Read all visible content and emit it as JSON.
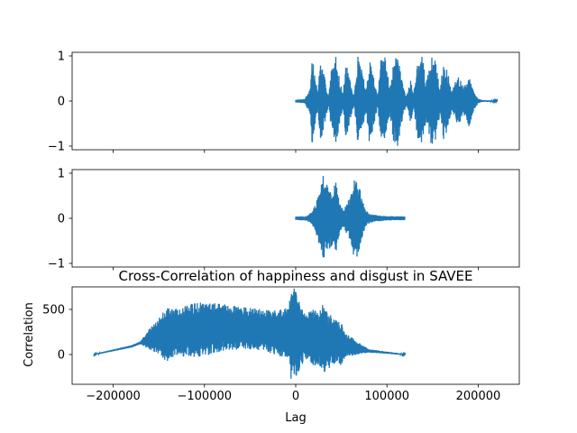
{
  "chart_data": [
    {
      "type": "line",
      "panel": "top",
      "title": "",
      "xlabel": "",
      "ylabel": "",
      "xlim": [
        -245000,
        245000
      ],
      "ylim": [
        -1.08,
        1.08
      ],
      "yticks": [
        -1,
        0,
        1
      ],
      "ytick_labels": [
        "−1",
        "0",
        "1"
      ],
      "xticks": [
        -200000,
        -100000,
        0,
        100000,
        200000
      ],
      "xtick_labels": [],
      "color": "#1f77b4",
      "series": [
        {
          "x_range": [
            0,
            221000
          ],
          "envelope": [
            [
              0,
              0.03
            ],
            [
              10000,
              0.05
            ],
            [
              16000,
              0.3
            ],
            [
              18000,
              1.0
            ],
            [
              21000,
              0.6
            ],
            [
              24000,
              0.2
            ],
            [
              27000,
              0.9
            ],
            [
              32000,
              0.5
            ],
            [
              36000,
              0.1
            ],
            [
              39000,
              0.7
            ],
            [
              44000,
              1.0
            ],
            [
              48000,
              0.5
            ],
            [
              52000,
              0.15
            ],
            [
              55000,
              0.9
            ],
            [
              60000,
              0.4
            ],
            [
              64000,
              0.1
            ],
            [
              68000,
              1.0
            ],
            [
              73000,
              0.7
            ],
            [
              77000,
              0.2
            ],
            [
              81000,
              1.0
            ],
            [
              86000,
              0.5
            ],
            [
              90000,
              0.12
            ],
            [
              93000,
              0.9
            ],
            [
              98000,
              1.0
            ],
            [
              103000,
              0.3
            ],
            [
              107000,
              0.9
            ],
            [
              112000,
              1.0
            ],
            [
              117000,
              0.4
            ],
            [
              121000,
              0.1
            ],
            [
              126000,
              0.5
            ],
            [
              129000,
              0.15
            ],
            [
              134000,
              0.9
            ],
            [
              139000,
              1.0
            ],
            [
              143000,
              0.4
            ],
            [
              148000,
              1.0
            ],
            [
              153000,
              0.9
            ],
            [
              158000,
              0.3
            ],
            [
              162000,
              0.9
            ],
            [
              167000,
              0.6
            ],
            [
              171000,
              0.2
            ],
            [
              178000,
              0.6
            ],
            [
              184000,
              0.3
            ],
            [
              190000,
              0.6
            ],
            [
              195000,
              0.2
            ],
            [
              200000,
              0.05
            ],
            [
              205000,
              0.02
            ],
            [
              221000,
              0.01
            ]
          ]
        }
      ]
    },
    {
      "type": "line",
      "panel": "middle",
      "title": "",
      "xlabel": "",
      "ylabel": "",
      "xlim": [
        -245000,
        245000
      ],
      "ylim": [
        -1.08,
        1.08
      ],
      "yticks": [
        -1,
        0,
        1
      ],
      "ytick_labels": [
        "−1",
        "0",
        "1"
      ],
      "xticks": [
        -200000,
        -100000,
        0,
        100000,
        200000
      ],
      "xtick_labels": [],
      "color": "#1f77b4",
      "series": [
        {
          "x_range": [
            0,
            120000
          ],
          "envelope": [
            [
              0,
              0.04
            ],
            [
              12000,
              0.05
            ],
            [
              18000,
              0.15
            ],
            [
              22000,
              0.35
            ],
            [
              26000,
              0.6
            ],
            [
              30000,
              0.95
            ],
            [
              33000,
              0.85
            ],
            [
              36000,
              0.7
            ],
            [
              40000,
              0.6
            ],
            [
              44000,
              0.8
            ],
            [
              48000,
              0.35
            ],
            [
              52000,
              0.2
            ],
            [
              56000,
              0.35
            ],
            [
              60000,
              0.5
            ],
            [
              64000,
              0.9
            ],
            [
              68000,
              0.85
            ],
            [
              72000,
              0.5
            ],
            [
              76000,
              0.2
            ],
            [
              80000,
              0.12
            ],
            [
              85000,
              0.08
            ],
            [
              100000,
              0.05
            ],
            [
              120000,
              0.04
            ]
          ]
        }
      ]
    },
    {
      "type": "line",
      "panel": "bottom",
      "title": "Cross-Correlation of happiness and disgust in SAVEE",
      "xlabel": "Lag",
      "ylabel": "Correlation",
      "xlim": [
        -245000,
        245000
      ],
      "ylim": [
        -330,
        750
      ],
      "yticks": [
        0,
        500
      ],
      "ytick_labels": [
        "0",
        "500"
      ],
      "xticks": [
        -200000,
        -100000,
        0,
        100000,
        200000
      ],
      "xtick_labels": [
        "−200000",
        "−100000",
        "0",
        "100000",
        "200000"
      ],
      "color": "#1f77b4",
      "series": [
        {
          "x_range": [
            -221000,
            120000
          ],
          "baseline": [
            [
              -221000,
              0
            ],
            [
              -180000,
              90
            ],
            [
              -160000,
              170
            ],
            [
              -140000,
              230
            ],
            [
              -110000,
              270
            ],
            [
              -80000,
              300
            ],
            [
              -50000,
              290
            ],
            [
              -20000,
              240
            ],
            [
              0,
              230
            ],
            [
              20000,
              180
            ],
            [
              40000,
              150
            ],
            [
              60000,
              90
            ],
            [
              80000,
              40
            ],
            [
              100000,
              20
            ],
            [
              120000,
              0
            ]
          ],
          "envelope": [
            [
              -221000,
              5
            ],
            [
              -170000,
              15
            ],
            [
              -160000,
              120
            ],
            [
              -150000,
              200
            ],
            [
              -140000,
              320
            ],
            [
              -130000,
              260
            ],
            [
              -115000,
              300
            ],
            [
              -100000,
              300
            ],
            [
              -80000,
              260
            ],
            [
              -60000,
              240
            ],
            [
              -40000,
              230
            ],
            [
              -20000,
              250
            ],
            [
              -8000,
              300
            ],
            [
              -5000,
              560
            ],
            [
              0,
              480
            ],
            [
              10000,
              260
            ],
            [
              20000,
              320
            ],
            [
              25000,
              290
            ],
            [
              30000,
              400
            ],
            [
              40000,
              260
            ],
            [
              50000,
              240
            ],
            [
              55000,
              130
            ],
            [
              60000,
              110
            ],
            [
              70000,
              60
            ],
            [
              80000,
              20
            ],
            [
              120000,
              5
            ]
          ]
        }
      ]
    }
  ]
}
